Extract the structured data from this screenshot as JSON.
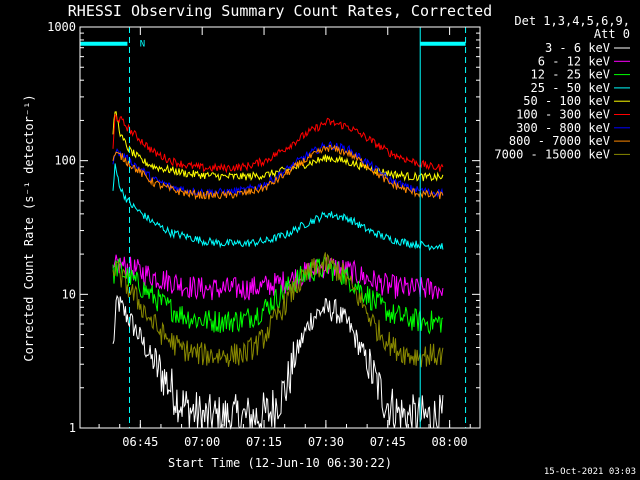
{
  "chart_data": {
    "type": "line",
    "title": "RHESSI Observing Summary Count Rates, Corrected",
    "xlabel": "Start Time (12-Jun-10 06:30:22)",
    "ylabel": "Corrected Count Rate (s⁻¹ detector⁻¹)",
    "yscale": "log",
    "xlim": [
      0.0,
      97.0
    ],
    "ylim": [
      1,
      1000
    ],
    "xticks": [
      {
        "value": 14.63,
        "label": "06:45"
      },
      {
        "value": 29.63,
        "label": "07:00"
      },
      {
        "value": 44.63,
        "label": "07:15"
      },
      {
        "value": 59.63,
        "label": "07:30"
      },
      {
        "value": 74.63,
        "label": "07:45"
      },
      {
        "value": 89.63,
        "label": "08:00"
      }
    ],
    "yticks": [
      {
        "value": 1,
        "label": "1"
      },
      {
        "value": 10,
        "label": "10"
      },
      {
        "value": 100,
        "label": "100"
      },
      {
        "value": 1000,
        "label": "1000"
      }
    ],
    "detector_info": [
      "Det 1,3,4,5,6,9,",
      "Att 0"
    ],
    "footer_date": "15-Oct-2021 03:03",
    "flag_label": "N",
    "series": [
      {
        "name": "3 - 6 keV",
        "color": "#ffffff",
        "x": [
          8,
          9,
          10,
          12,
          15,
          18,
          20,
          22,
          24,
          26,
          28,
          30,
          34,
          38,
          42,
          46,
          50,
          53,
          56,
          59,
          62,
          65,
          68,
          71,
          74,
          77,
          80,
          83,
          85,
          88
        ],
        "y": [
          4,
          9,
          8,
          6.5,
          4.5,
          3,
          2.5,
          2,
          1.6,
          1.4,
          1.3,
          1.2,
          1.2,
          1.2,
          1.2,
          1.3,
          2,
          4,
          6.5,
          7.8,
          7.5,
          6,
          4,
          2.5,
          1.6,
          1.3,
          1.2,
          1.2,
          1.2,
          1.2
        ]
      },
      {
        "name": "6 - 12 keV",
        "color": "#ff00ff",
        "x": [
          8,
          9,
          11,
          14,
          18,
          22,
          26,
          30,
          35,
          40,
          45,
          50,
          55,
          60,
          65,
          70,
          75,
          80,
          85,
          88
        ],
        "y": [
          14,
          17,
          16,
          15,
          13.5,
          12.5,
          11.5,
          11,
          11,
          11,
          11.5,
          12.5,
          14.5,
          16.5,
          15,
          13,
          11.5,
          11,
          11,
          11
        ]
      },
      {
        "name": "12 - 25 keV",
        "color": "#00ff00",
        "x": [
          8,
          9,
          11,
          14,
          17,
          20,
          24,
          28,
          32,
          36,
          40,
          44,
          48,
          52,
          56,
          60,
          64,
          68,
          72,
          76,
          80,
          84,
          88
        ],
        "y": [
          14,
          16,
          14,
          12,
          10,
          8.5,
          7.2,
          6.5,
          6.3,
          6.3,
          6.5,
          7.5,
          9.5,
          12.5,
          15,
          16,
          14,
          11,
          8.5,
          7,
          6.5,
          6.2,
          6.2
        ]
      },
      {
        "name": "25 - 50 keV",
        "color": "#00ffff",
        "x": [
          8,
          8.5,
          10,
          12,
          15,
          18,
          22,
          26,
          30,
          35,
          40,
          45,
          50,
          55,
          60,
          65,
          70,
          75,
          80,
          85,
          88
        ],
        "y": [
          60,
          90,
          60,
          48,
          40,
          34,
          29,
          27,
          25,
          24,
          24,
          25,
          28,
          34,
          40,
          37,
          30,
          26,
          24,
          23,
          23
        ]
      },
      {
        "name": "50 - 100 keV",
        "color": "#ffff00",
        "x": [
          8,
          8.5,
          10,
          12,
          15,
          18,
          22,
          26,
          30,
          35,
          40,
          45,
          50,
          55,
          60,
          65,
          70,
          75,
          80,
          85,
          88
        ],
        "y": [
          150,
          240,
          150,
          120,
          100,
          90,
          85,
          80,
          78,
          76,
          76,
          78,
          85,
          95,
          105,
          98,
          88,
          80,
          76,
          75,
          75
        ]
      },
      {
        "name": "100 - 300 keV",
        "color": "#ff0000",
        "x": [
          8,
          8.5,
          10,
          12,
          15,
          18,
          22,
          26,
          30,
          35,
          40,
          45,
          50,
          55,
          60,
          65,
          70,
          75,
          80,
          85,
          88
        ],
        "y": [
          120,
          215,
          200,
          170,
          140,
          115,
          100,
          92,
          88,
          88,
          90,
          100,
          125,
          160,
          195,
          180,
          145,
          115,
          100,
          90,
          88
        ]
      },
      {
        "name": "300 - 800 keV",
        "color": "#0000ff",
        "x": [
          8,
          8.5,
          10,
          12,
          15,
          18,
          22,
          26,
          30,
          35,
          40,
          45,
          50,
          55,
          60,
          65,
          70,
          75,
          80,
          85,
          88
        ],
        "y": [
          100,
          118,
          112,
          100,
          85,
          72,
          64,
          60,
          58,
          58,
          60,
          67,
          85,
          110,
          132,
          122,
          95,
          72,
          62,
          58,
          58
        ]
      },
      {
        "name": "800 - 7000 keV",
        "color": "#ff8800",
        "x": [
          8,
          8.5,
          10,
          12,
          15,
          18,
          22,
          26,
          30,
          35,
          40,
          45,
          50,
          55,
          60,
          65,
          70,
          75,
          80,
          85,
          88
        ],
        "y": [
          100,
          112,
          108,
          95,
          80,
          68,
          61,
          57,
          55,
          55,
          57,
          63,
          80,
          103,
          125,
          115,
          90,
          68,
          59,
          55,
          55
        ]
      },
      {
        "name": "7000 - 15000 keV",
        "color": "#888800",
        "x": [
          8,
          9,
          11,
          14,
          17,
          20,
          24,
          28,
          32,
          36,
          40,
          44,
          48,
          52,
          56,
          60,
          64,
          68,
          72,
          76,
          80,
          84,
          88
        ],
        "y": [
          16,
          15,
          12,
          9,
          6.5,
          5,
          4,
          3.6,
          3.5,
          3.5,
          3.6,
          4.5,
          7,
          11,
          15,
          17,
          14,
          9,
          5.5,
          4,
          3.5,
          3.5,
          3.5
        ]
      }
    ],
    "markers": {
      "attenuator_bars": [
        [
          0,
          11.5
        ],
        [
          82.5,
          93.5
        ]
      ],
      "solid_cyan_lines": [
        0,
        82.5
      ],
      "dashed_cyan_lines": [
        12,
        93.5
      ],
      "flag_x": 14.5,
      "level": 750
    }
  }
}
